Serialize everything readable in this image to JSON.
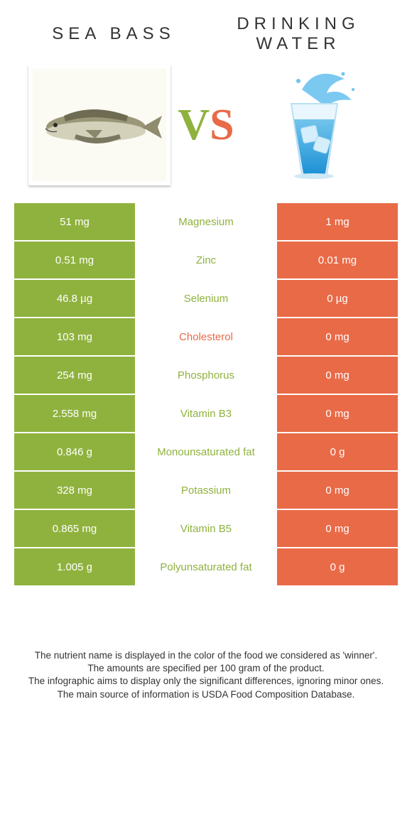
{
  "colors": {
    "left": "#8fb23e",
    "right": "#e96a47",
    "white": "#ffffff",
    "text": "#333333"
  },
  "left": {
    "title": "Sea bass"
  },
  "right": {
    "title": "Drinking water"
  },
  "vs": {
    "v": "V",
    "s": "S"
  },
  "rows": [
    {
      "label": "Magnesium",
      "left": "51 mg",
      "right": "1 mg",
      "winner": "left"
    },
    {
      "label": "Zinc",
      "left": "0.51 mg",
      "right": "0.01 mg",
      "winner": "left"
    },
    {
      "label": "Selenium",
      "left": "46.8 µg",
      "right": "0 µg",
      "winner": "left"
    },
    {
      "label": "Cholesterol",
      "left": "103 mg",
      "right": "0 mg",
      "winner": "right"
    },
    {
      "label": "Phosphorus",
      "left": "254 mg",
      "right": "0 mg",
      "winner": "left"
    },
    {
      "label": "Vitamin B3",
      "left": "2.558 mg",
      "right": "0 mg",
      "winner": "left"
    },
    {
      "label": "Monounsaturated fat",
      "left": "0.846 g",
      "right": "0 g",
      "winner": "left"
    },
    {
      "label": "Potassium",
      "left": "328 mg",
      "right": "0 mg",
      "winner": "left"
    },
    {
      "label": "Vitamin B5",
      "left": "0.865 mg",
      "right": "0 mg",
      "winner": "left"
    },
    {
      "label": "Polyunsaturated fat",
      "left": "1.005 g",
      "right": "0 g",
      "winner": "left"
    }
  ],
  "footer": {
    "l1": "The nutrient name is displayed in the color of the food we considered as 'winner'.",
    "l2": "The amounts are specified per 100 gram of the product.",
    "l3": "The infographic aims to display only the significant differences, ignoring minor ones.",
    "l4": "The main source of information is USDA Food Composition Database."
  }
}
